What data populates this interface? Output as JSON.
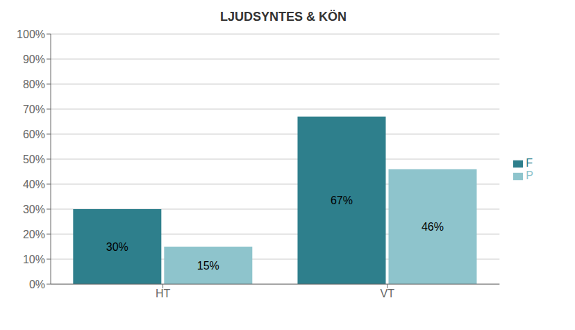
{
  "chart_data": {
    "type": "bar",
    "title": "LJUDSYNTES & KÖN",
    "categories": [
      "HT",
      "VT"
    ],
    "series": [
      {
        "name": "F",
        "color": "#2e7f8c",
        "values": [
          0.3,
          0.67
        ],
        "value_labels": [
          "30%",
          "67%"
        ]
      },
      {
        "name": "P",
        "color": "#8ec4cc",
        "values": [
          0.15,
          0.46
        ],
        "value_labels": [
          "15%",
          "46%"
        ]
      }
    ],
    "ylim": [
      0,
      1.0
    ],
    "yticks": [
      {
        "value": 0.0,
        "label": "0%"
      },
      {
        "value": 0.1,
        "label": "10%"
      },
      {
        "value": 0.2,
        "label": "20%"
      },
      {
        "value": 0.3,
        "label": "30%"
      },
      {
        "value": 0.4,
        "label": "40%"
      },
      {
        "value": 0.5,
        "label": "50%"
      },
      {
        "value": 0.6,
        "label": "60%"
      },
      {
        "value": 0.7,
        "label": "70%"
      },
      {
        "value": 0.8,
        "label": "80%"
      },
      {
        "value": 0.9,
        "label": "90%"
      },
      {
        "value": 1.0,
        "label": "100%"
      }
    ],
    "grid": true,
    "legend": "right",
    "data_labels": true
  }
}
